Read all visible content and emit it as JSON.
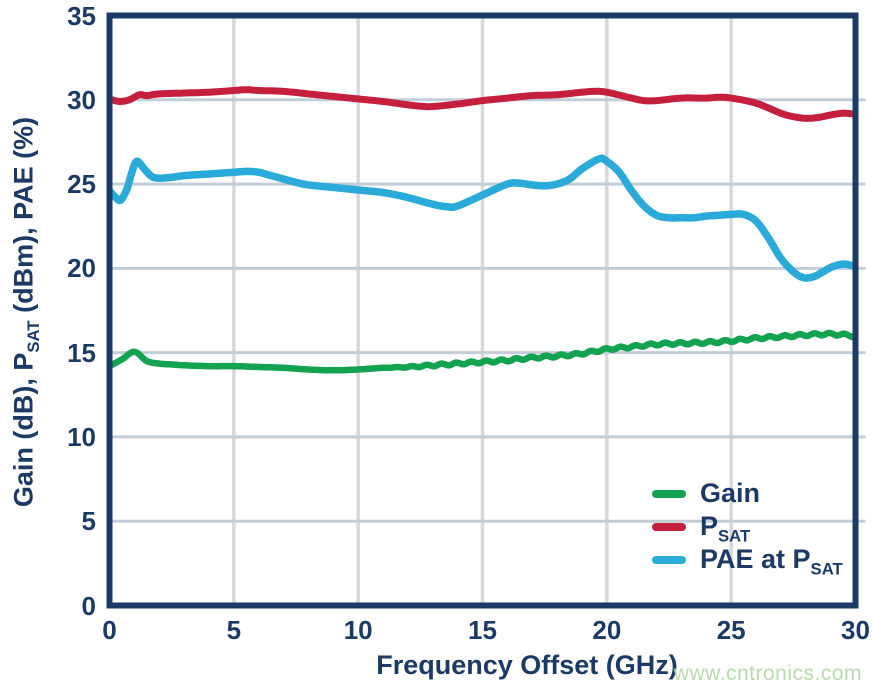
{
  "watermark": "www.cntronics.com",
  "colors": {
    "frame_and_text": "#1b3a66",
    "h_gridline": "#c3cdd8",
    "v_gridline": "#d7d8d9",
    "gain": "#13a24f",
    "psat": "#c41f3d",
    "pae": "#29aad8",
    "watermark": "#b7dcaa",
    "background": "#ffffff"
  },
  "chart_data": {
    "type": "line",
    "title": "",
    "xlabel": "Frequency Offset (GHz)",
    "ylabel": "Gain (dB), P(SAT) (dBm), PAE (%)",
    "ylabel_parts": [
      {
        "t": "Gain (dB), P"
      },
      {
        "sub": "SAT"
      },
      {
        "t": " (dBm), PAE (%)"
      }
    ],
    "xlim": [
      0,
      30
    ],
    "ylim": [
      0,
      35
    ],
    "x_ticks": [
      0,
      5,
      10,
      15,
      20,
      25,
      30
    ],
    "y_ticks": [
      0,
      5,
      10,
      15,
      20,
      25,
      30,
      35
    ],
    "grid": true,
    "legend_position": "inside-lower-right",
    "series": [
      {
        "id": "gain",
        "name": "Gain",
        "name_parts": [
          {
            "t": "Gain"
          }
        ],
        "color": "#13a24f",
        "stroke_width": 6.5,
        "ripple": {
          "from_x": 11,
          "amplitude": 0.07,
          "period": 0.6
        },
        "points": [
          [
            0,
            14.2
          ],
          [
            0.5,
            14.6
          ],
          [
            1,
            15.05
          ],
          [
            1.5,
            14.5
          ],
          [
            2,
            14.35
          ],
          [
            2.5,
            14.3
          ],
          [
            3,
            14.25
          ],
          [
            4,
            14.2
          ],
          [
            5,
            14.2
          ],
          [
            6,
            14.15
          ],
          [
            7,
            14.1
          ],
          [
            8,
            14.0
          ],
          [
            9,
            13.95
          ],
          [
            10,
            14.0
          ],
          [
            11,
            14.1
          ],
          [
            12,
            14.15
          ],
          [
            13,
            14.25
          ],
          [
            14,
            14.35
          ],
          [
            15,
            14.45
          ],
          [
            16,
            14.55
          ],
          [
            17,
            14.7
          ],
          [
            18,
            14.8
          ],
          [
            19,
            14.95
          ],
          [
            20,
            15.2
          ],
          [
            21,
            15.35
          ],
          [
            22,
            15.5
          ],
          [
            23,
            15.55
          ],
          [
            24,
            15.6
          ],
          [
            25,
            15.7
          ],
          [
            26,
            15.85
          ],
          [
            27,
            15.95
          ],
          [
            28,
            16.05
          ],
          [
            29,
            16.1
          ],
          [
            30,
            16.0
          ]
        ]
      },
      {
        "id": "psat",
        "name": "PSAT",
        "name_parts": [
          {
            "t": "P"
          },
          {
            "sub": "SAT"
          }
        ],
        "color": "#c41f3d",
        "stroke_width": 7,
        "points": [
          [
            0,
            30.05
          ],
          [
            0.4,
            29.9
          ],
          [
            0.8,
            30.0
          ],
          [
            1.2,
            30.3
          ],
          [
            1.5,
            30.25
          ],
          [
            2,
            30.35
          ],
          [
            3,
            30.4
          ],
          [
            4,
            30.45
          ],
          [
            5,
            30.55
          ],
          [
            5.5,
            30.6
          ],
          [
            6,
            30.55
          ],
          [
            7,
            30.5
          ],
          [
            8,
            30.35
          ],
          [
            9,
            30.2
          ],
          [
            10,
            30.05
          ],
          [
            11,
            29.9
          ],
          [
            12,
            29.7
          ],
          [
            12.5,
            29.62
          ],
          [
            13,
            29.6
          ],
          [
            14,
            29.75
          ],
          [
            15,
            29.95
          ],
          [
            16,
            30.1
          ],
          [
            17,
            30.25
          ],
          [
            18,
            30.3
          ],
          [
            19,
            30.45
          ],
          [
            19.5,
            30.5
          ],
          [
            20,
            30.45
          ],
          [
            21,
            30.1
          ],
          [
            21.5,
            29.95
          ],
          [
            22,
            29.95
          ],
          [
            23,
            30.1
          ],
          [
            24,
            30.1
          ],
          [
            24.5,
            30.15
          ],
          [
            25,
            30.1
          ],
          [
            26,
            29.8
          ],
          [
            27,
            29.2
          ],
          [
            27.5,
            29.0
          ],
          [
            28,
            28.9
          ],
          [
            28.5,
            28.95
          ],
          [
            29,
            29.1
          ],
          [
            29.5,
            29.2
          ],
          [
            30,
            29.15
          ]
        ]
      },
      {
        "id": "pae",
        "name": "PAE at PSAT",
        "name_parts": [
          {
            "t": "PAE at P"
          },
          {
            "sub": "SAT"
          }
        ],
        "color": "#29aad8",
        "stroke_width": 7.5,
        "points": [
          [
            0,
            24.6
          ],
          [
            0.25,
            24.2
          ],
          [
            0.45,
            24.05
          ],
          [
            0.7,
            24.7
          ],
          [
            0.9,
            25.7
          ],
          [
            1.1,
            26.35
          ],
          [
            1.4,
            25.9
          ],
          [
            1.7,
            25.45
          ],
          [
            2,
            25.35
          ],
          [
            2.5,
            25.4
          ],
          [
            3,
            25.5
          ],
          [
            4,
            25.6
          ],
          [
            5,
            25.7
          ],
          [
            5.5,
            25.75
          ],
          [
            6,
            25.7
          ],
          [
            6.5,
            25.5
          ],
          [
            7,
            25.3
          ],
          [
            7.5,
            25.1
          ],
          [
            8,
            24.95
          ],
          [
            9,
            24.8
          ],
          [
            10,
            24.65
          ],
          [
            11,
            24.5
          ],
          [
            12,
            24.2
          ],
          [
            13,
            23.8
          ],
          [
            13.6,
            23.65
          ],
          [
            14,
            23.7
          ],
          [
            15,
            24.35
          ],
          [
            16,
            25.0
          ],
          [
            16.5,
            25.05
          ],
          [
            17,
            24.95
          ],
          [
            17.5,
            24.9
          ],
          [
            18,
            25.0
          ],
          [
            18.5,
            25.3
          ],
          [
            19,
            25.9
          ],
          [
            19.7,
            26.5
          ],
          [
            20,
            26.35
          ],
          [
            20.5,
            25.7
          ],
          [
            21,
            24.6
          ],
          [
            21.5,
            23.7
          ],
          [
            22,
            23.15
          ],
          [
            22.5,
            23.0
          ],
          [
            23,
            23.0
          ],
          [
            23.5,
            23.0
          ],
          [
            24,
            23.1
          ],
          [
            24.5,
            23.15
          ],
          [
            25,
            23.2
          ],
          [
            25.5,
            23.2
          ],
          [
            26,
            22.8
          ],
          [
            26.5,
            21.8
          ],
          [
            27,
            20.6
          ],
          [
            27.5,
            19.8
          ],
          [
            27.9,
            19.45
          ],
          [
            28.3,
            19.5
          ],
          [
            28.7,
            19.8
          ],
          [
            29,
            20.05
          ],
          [
            29.3,
            20.2
          ],
          [
            29.6,
            20.25
          ],
          [
            30,
            20.1
          ]
        ]
      }
    ]
  }
}
